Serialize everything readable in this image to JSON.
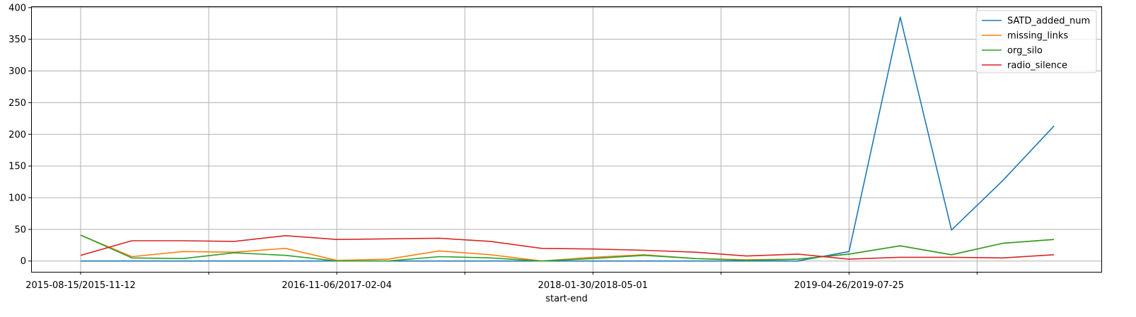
{
  "chart_data": {
    "type": "line",
    "xlabel": "start-end",
    "ylabel": "",
    "ylim": [
      -17,
      402
    ],
    "y_ticks": [
      0,
      50,
      100,
      150,
      200,
      250,
      300,
      350,
      400
    ],
    "x_count": 20,
    "x_tick_positions": [
      0,
      2.5,
      5,
      7.5,
      10,
      12.5,
      15,
      17.5
    ],
    "x_tick_labels": [
      {
        "index": 0,
        "label": "2015-08-15/2015-11-12"
      },
      {
        "index": 5,
        "label": "2016-11-06/2017-02-04"
      },
      {
        "index": 10,
        "label": "2018-01-30/2018-05-01"
      },
      {
        "index": 15,
        "label": "2019-04-26/2019-07-25"
      }
    ],
    "grid": true,
    "legend_position": "top-right",
    "series": [
      {
        "name": "SATD_added_num",
        "color": "#1f77b4",
        "values": [
          0,
          0,
          0,
          0,
          0,
          0,
          0,
          0,
          0,
          0,
          0,
          0,
          0,
          0,
          0,
          15,
          385,
          49,
          127,
          213
        ]
      },
      {
        "name": "missing_links",
        "color": "#ff7f0e",
        "values": [
          41,
          7,
          15,
          14,
          20,
          1,
          3,
          16,
          10,
          0,
          6,
          10,
          4,
          2,
          3,
          11,
          24,
          10,
          28,
          34
        ]
      },
      {
        "name": "org_silo",
        "color": "#2ca02c",
        "values": [
          41,
          5,
          4,
          13,
          9,
          0,
          0,
          7,
          5,
          0,
          4,
          9,
          4,
          1,
          3,
          11,
          24,
          10,
          28,
          34
        ]
      },
      {
        "name": "radio_silence",
        "color": "#d62728",
        "values": [
          9,
          32,
          32,
          31,
          40,
          34,
          35,
          36,
          31,
          20,
          19,
          17,
          14,
          8,
          11,
          3,
          6,
          6,
          5,
          10
        ]
      }
    ]
  }
}
